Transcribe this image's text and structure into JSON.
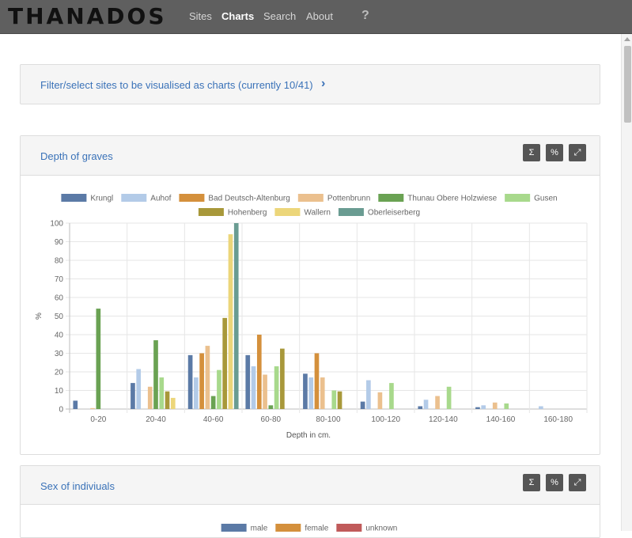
{
  "nav": {
    "brand": "THANADOS",
    "links": [
      "Sites",
      "Charts",
      "Search",
      "About"
    ],
    "active": "Charts",
    "help": "?"
  },
  "filter": {
    "label": "Filter/select sites to be visualised as charts (currently 10/41)",
    "chevron": "›"
  },
  "toolbar": {
    "sum": "Σ",
    "percent": "%",
    "expand": "⤢"
  },
  "depth_panel": {
    "title": "Depth of graves"
  },
  "sex_panel": {
    "title": "Sex of indiviuals"
  },
  "sex_legend": [
    {
      "name": "male",
      "color": "#5b7aa6"
    },
    {
      "name": "female",
      "color": "#d4903c"
    },
    {
      "name": "unknown",
      "color": "#c05a5a"
    }
  ],
  "colors": {
    "Krungl": "#5b7aa6",
    "Auhof": "#b3cbe8",
    "Bad Deutsch-Altenburg": "#d4903c",
    "Pottenbrunn": "#ebc08e",
    "Thunau Obere Holzwiese": "#6aa253",
    "Gusen": "#a8d98c",
    "Hohenberg": "#a8983a",
    "Wallern": "#ecd67a",
    "Oberleiserberg": "#6a9c92"
  },
  "chart_data": {
    "type": "bar",
    "categories": [
      "0-20",
      "20-40",
      "40-60",
      "60-80",
      "80-100",
      "100-120",
      "120-140",
      "140-160",
      "160-180"
    ],
    "xlabel": "Depth in cm.",
    "ylabel": "%",
    "ylim": [
      0,
      100
    ],
    "yticks": [
      0,
      10,
      20,
      30,
      40,
      50,
      60,
      70,
      80,
      90,
      100
    ],
    "grid": true,
    "legend_position": "top",
    "series": [
      {
        "name": "Krungl",
        "values": [
          4.5,
          14,
          29,
          29,
          19,
          4,
          1.5,
          1,
          0
        ]
      },
      {
        "name": "Auhof",
        "values": [
          0,
          21.5,
          17,
          23,
          17,
          15.5,
          5,
          2,
          1.5
        ]
      },
      {
        "name": "Bad Deutsch-Altenburg",
        "values": [
          0,
          0,
          30,
          40,
          30,
          0,
          0,
          0,
          0
        ]
      },
      {
        "name": "Pottenbrunn",
        "values": [
          0.5,
          12,
          34,
          18.5,
          17,
          9,
          7,
          3.5,
          0
        ]
      },
      {
        "name": "Thunau Obere Holzwiese",
        "values": [
          54,
          37,
          7,
          2,
          0,
          0,
          0,
          0,
          0
        ]
      },
      {
        "name": "Gusen",
        "values": [
          0,
          17,
          21,
          23,
          10,
          14,
          12,
          3,
          0
        ]
      },
      {
        "name": "Hohenberg",
        "values": [
          0,
          9.5,
          49,
          32.5,
          9.5,
          0,
          0,
          0,
          0
        ]
      },
      {
        "name": "Wallern",
        "values": [
          0,
          6,
          94,
          0,
          0,
          0,
          0,
          0,
          0
        ]
      },
      {
        "name": "Oberleiserberg",
        "values": [
          0,
          0,
          100,
          0,
          0,
          0,
          0,
          0,
          0
        ]
      }
    ]
  }
}
